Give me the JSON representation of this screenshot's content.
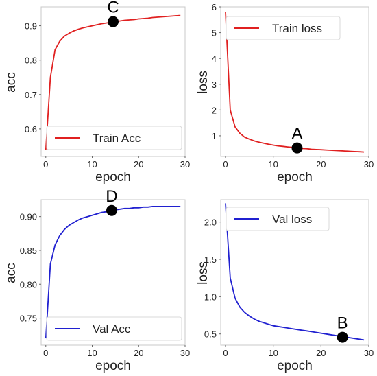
{
  "chart_data": [
    {
      "type": "line",
      "xlabel": "epoch",
      "ylabel": "acc",
      "xlim": [
        -1,
        30
      ],
      "ylim": [
        0.52,
        0.955
      ],
      "xticks": [
        0,
        10,
        20,
        30
      ],
      "xtick_labels": [
        "0",
        "10",
        "20",
        "30"
      ],
      "yticks": [
        0.6,
        0.7,
        0.8,
        0.9
      ],
      "ytick_labels": [
        "0.6",
        "0.7",
        "0.8",
        "0.9"
      ],
      "legend_placement": "bottom-right",
      "grid": false,
      "series": [
        {
          "name": "Train Acc",
          "color": "#e02020",
          "x": [
            0,
            1,
            2,
            3,
            4,
            5,
            6,
            7,
            8,
            9,
            10,
            11,
            12,
            13,
            14,
            15,
            16,
            17,
            18,
            19,
            20,
            21,
            22,
            23,
            24,
            25,
            26,
            27,
            28,
            29
          ],
          "y": [
            0.54,
            0.75,
            0.83,
            0.855,
            0.87,
            0.878,
            0.885,
            0.89,
            0.894,
            0.897,
            0.9,
            0.903,
            0.906,
            0.908,
            0.91,
            0.912,
            0.914,
            0.916,
            0.917,
            0.918,
            0.92,
            0.921,
            0.922,
            0.924,
            0.925,
            0.926,
            0.927,
            0.928,
            0.929,
            0.93
          ]
        }
      ],
      "annotations": [
        {
          "label": "C",
          "x": 14.5,
          "y": 0.912
        }
      ]
    },
    {
      "type": "line",
      "xlabel": "epoch",
      "ylabel": "loss",
      "xlim": [
        -1,
        30
      ],
      "ylim": [
        0.2,
        6.0
      ],
      "xticks": [
        0,
        10,
        20,
        30
      ],
      "xtick_labels": [
        "0",
        "10",
        "20",
        "30"
      ],
      "yticks": [
        1,
        2,
        3,
        4,
        5,
        6
      ],
      "ytick_labels": [
        "1",
        "2",
        "3",
        "4",
        "5",
        "6"
      ],
      "legend_placement": "top-right",
      "grid": false,
      "series": [
        {
          "name": "Train loss",
          "color": "#e02020",
          "x": [
            0,
            1,
            2,
            3,
            4,
            5,
            6,
            7,
            8,
            9,
            10,
            11,
            12,
            13,
            14,
            15,
            16,
            17,
            18,
            19,
            20,
            21,
            22,
            23,
            24,
            25,
            26,
            27,
            28,
            29
          ],
          "y": [
            5.8,
            2.0,
            1.35,
            1.1,
            0.95,
            0.87,
            0.8,
            0.75,
            0.71,
            0.67,
            0.64,
            0.61,
            0.59,
            0.57,
            0.55,
            0.53,
            0.51,
            0.5,
            0.48,
            0.47,
            0.46,
            0.45,
            0.44,
            0.43,
            0.42,
            0.41,
            0.4,
            0.39,
            0.38,
            0.37
          ]
        }
      ],
      "annotations": [
        {
          "label": "A",
          "x": 15,
          "y": 0.53
        }
      ]
    },
    {
      "type": "line",
      "xlabel": "epoch",
      "ylabel": "acc",
      "xlim": [
        -1,
        30
      ],
      "ylim": [
        0.71,
        0.925
      ],
      "xticks": [
        0,
        10,
        20,
        30
      ],
      "xtick_labels": [
        "0",
        "10",
        "20",
        "30"
      ],
      "yticks": [
        0.75,
        0.8,
        0.85,
        0.9
      ],
      "ytick_labels": [
        "0.75",
        "0.80",
        "0.85",
        "0.90"
      ],
      "legend_placement": "bottom-right",
      "grid": false,
      "series": [
        {
          "name": "Val Acc",
          "color": "#2020d0",
          "x": [
            0,
            1,
            2,
            3,
            4,
            5,
            6,
            7,
            8,
            9,
            10,
            11,
            12,
            13,
            14,
            15,
            16,
            17,
            18,
            19,
            20,
            21,
            22,
            23,
            24,
            25,
            26,
            27,
            28,
            29
          ],
          "y": [
            0.72,
            0.83,
            0.858,
            0.872,
            0.881,
            0.887,
            0.891,
            0.895,
            0.898,
            0.9,
            0.902,
            0.904,
            0.906,
            0.907,
            0.909,
            0.91,
            0.911,
            0.912,
            0.912,
            0.913,
            0.913,
            0.914,
            0.914,
            0.915,
            0.915,
            0.915,
            0.915,
            0.915,
            0.915,
            0.915
          ]
        }
      ],
      "annotations": [
        {
          "label": "D",
          "x": 14.2,
          "y": 0.909
        }
      ]
    },
    {
      "type": "line",
      "xlabel": "epoch",
      "ylabel": "loss",
      "xlim": [
        -1,
        30
      ],
      "ylim": [
        0.35,
        2.3
      ],
      "xticks": [
        0,
        10,
        20,
        30
      ],
      "xtick_labels": [
        "0",
        "10",
        "20",
        "30"
      ],
      "yticks": [
        0.5,
        1.0,
        1.5,
        2.0
      ],
      "ytick_labels": [
        "0.5",
        "1.0",
        "1.5",
        "2.0"
      ],
      "legend_placement": "top-right",
      "grid": false,
      "series": [
        {
          "name": "Val loss",
          "color": "#2020d0",
          "x": [
            0,
            1,
            2,
            3,
            4,
            5,
            6,
            7,
            8,
            9,
            10,
            11,
            12,
            13,
            14,
            15,
            16,
            17,
            18,
            19,
            20,
            21,
            22,
            23,
            24,
            25,
            26,
            27,
            28,
            29
          ],
          "y": [
            2.25,
            1.25,
            0.98,
            0.86,
            0.79,
            0.74,
            0.7,
            0.67,
            0.65,
            0.63,
            0.61,
            0.6,
            0.59,
            0.58,
            0.57,
            0.56,
            0.55,
            0.54,
            0.53,
            0.52,
            0.51,
            0.5,
            0.49,
            0.48,
            0.47,
            0.46,
            0.45,
            0.44,
            0.43,
            0.42
          ]
        }
      ],
      "annotations": [
        {
          "label": "B",
          "x": 24.5,
          "y": 0.455
        }
      ]
    }
  ]
}
